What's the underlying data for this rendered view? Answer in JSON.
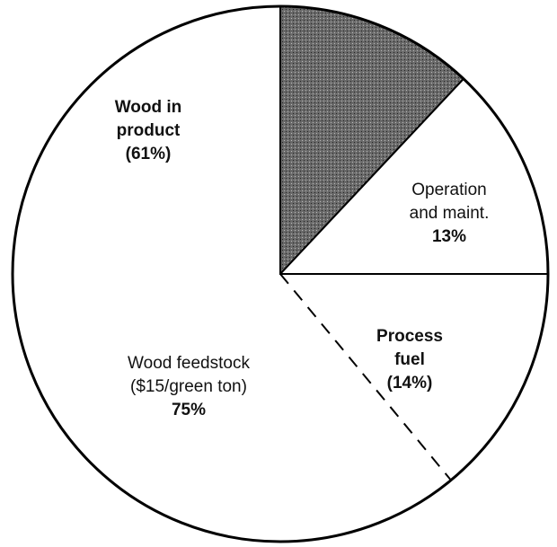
{
  "chart_data": {
    "type": "pie",
    "slices": [
      {
        "value": 12,
        "color": "#4a4a4a"
      },
      {
        "label": [
          "Operation",
          "and maint."
        ],
        "value": 13,
        "value_label": "13%",
        "color": "#ffffff"
      },
      {
        "label": [
          "Wood feedstock",
          "($15/green ton)"
        ],
        "value": 75,
        "value_label": "75%",
        "color": "#ffffff",
        "parts": [
          {
            "label": [
              "Process",
              "fuel"
            ],
            "value": 14,
            "value_label": "(14%)"
          },
          {
            "label": [
              "Wood in",
              "product"
            ],
            "value": 61,
            "value_label": "(61%)"
          }
        ]
      }
    ]
  }
}
